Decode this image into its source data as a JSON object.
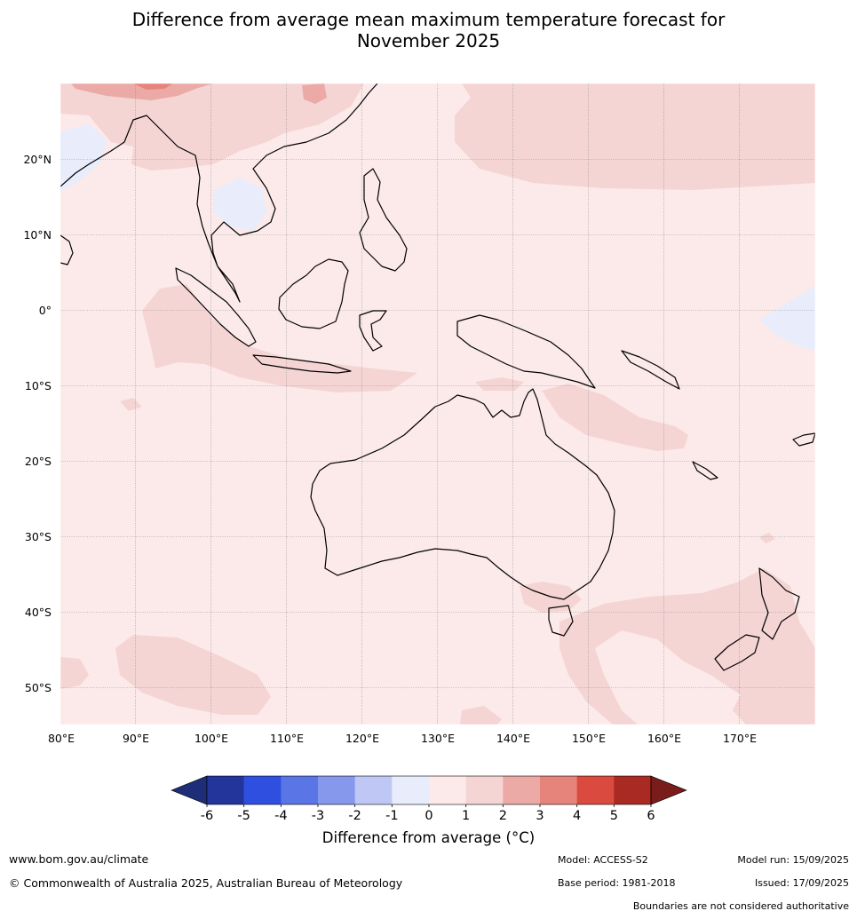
{
  "title": {
    "line1": "Difference from average mean maximum temperature forecast for",
    "line2": "November 2025"
  },
  "map": {
    "lat_labels": [
      "20°N",
      "10°N",
      "0°",
      "10°S",
      "20°S",
      "30°S",
      "40°S",
      "50°S"
    ],
    "lon_labels": [
      "80°E",
      "90°E",
      "100°E",
      "110°E",
      "120°E",
      "130°E",
      "140°E",
      "150°E",
      "160°E",
      "170°E"
    ]
  },
  "colorbar": {
    "ticks": [
      "-6",
      "-5",
      "-4",
      "-3",
      "-2",
      "-1",
      "0",
      "1",
      "2",
      "3",
      "4",
      "5",
      "6"
    ],
    "colors": [
      "#23359b",
      "#2f4fe0",
      "#5a75e6",
      "#8598ec",
      "#bfc8f4",
      "#e8ecfb",
      "#fbeae9",
      "#f5d4d4",
      "#ebaaa5",
      "#e6847c",
      "#da4a3e",
      "#a92a22"
    ],
    "under_color": "#1d2d78",
    "over_color": "#7a1c1a",
    "label": "Difference from average (°C)"
  },
  "footer": {
    "website": "www.bom.gov.au/climate",
    "copyright": "© Commonwealth of Australia 2025, Australian Bureau of Meteorology",
    "model": "Model: ACCESS-S2",
    "base_period": "Base period: 1981-2018",
    "model_run": "Model run: 15/09/2025",
    "issued": "Issued: 17/09/2025",
    "disclaimer": "Boundaries are not considered authoritative"
  }
}
